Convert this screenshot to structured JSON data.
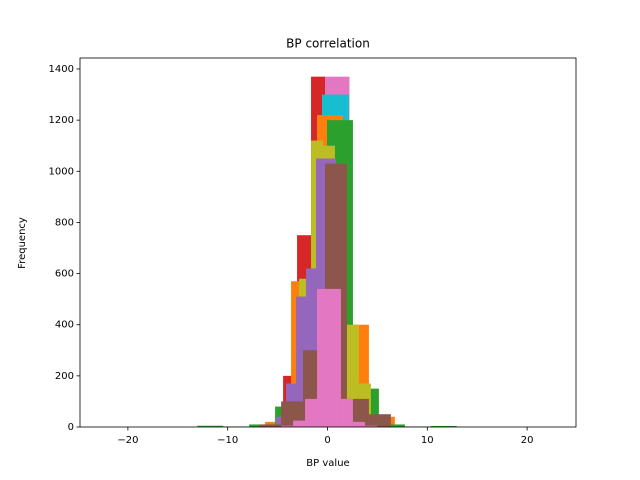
{
  "chart_data": {
    "type": "histogram",
    "title": "BP correlation",
    "x_label": "BP value",
    "y_label": "Frequency",
    "xlim": [
      -24.8,
      24.9
    ],
    "ylim": [
      0,
      1443
    ],
    "xticks": [
      {
        "value": -20,
        "label": "−20"
      },
      {
        "value": -10,
        "label": "−10"
      },
      0,
      10,
      20
    ],
    "yticks": [
      0,
      200,
      400,
      600,
      800,
      1000,
      1200,
      1400
    ],
    "grid": false,
    "series": [
      {
        "color": "#e377c2",
        "bins": [
          -2.9,
          -0.35,
          2.2,
          4.75
        ],
        "values": [
          200,
          1370,
          50
        ]
      },
      {
        "color": "#d62728",
        "bins": [
          -4.45,
          -3.05,
          -1.65,
          -0.25,
          1.15,
          2.55,
          3.95
        ],
        "values": [
          200,
          750,
          1370,
          300,
          60,
          10
        ]
      },
      {
        "color": "#17becf",
        "bins": [
          -6.0,
          -3.25,
          -0.55,
          2.15,
          4.85,
          7.55
        ],
        "values": [
          10,
          110,
          1300,
          60,
          5
        ]
      },
      {
        "color": "#ff7f0e",
        "bins": [
          -6.25,
          -3.65,
          -1.05,
          1.55,
          4.15,
          6.75
        ],
        "values": [
          20,
          570,
          1220,
          400,
          40
        ]
      },
      {
        "color": "#2ca02c",
        "bins": [
          -13.05,
          -10.45,
          -7.85,
          -5.25,
          -2.65,
          -0.05,
          2.55,
          5.15,
          7.75,
          10.35,
          12.95
        ],
        "values": [
          5,
          2,
          10,
          80,
          250,
          1200,
          150,
          10,
          2,
          4
        ]
      },
      {
        "color": "#bcbd22",
        "bins": [
          -4.05,
          -2.85,
          -1.65,
          -0.45,
          0.75,
          1.95,
          3.15,
          4.35
        ],
        "values": [
          100,
          580,
          1120,
          1100,
          900,
          400,
          170
        ]
      },
      {
        "color": "#9467bd",
        "bins": [
          -5.15,
          -4.15,
          -3.15,
          -2.15,
          -1.15,
          -0.15,
          0.85,
          1.85
        ],
        "values": [
          40,
          170,
          510,
          620,
          1050,
          1050,
          100
        ]
      },
      {
        "color": "#8c564b",
        "bins": [
          -6.85,
          -4.65,
          -2.45,
          -0.25,
          1.95,
          4.15,
          6.35
        ],
        "values": [
          10,
          100,
          300,
          1030,
          110,
          50
        ]
      },
      {
        "color": "#e377c2",
        "bins": [
          -4.65,
          -3.45,
          -2.25,
          -1.05,
          0.15,
          1.35,
          2.55,
          3.75,
          4.95
        ],
        "values": [
          5,
          25,
          110,
          540,
          540,
          110,
          20,
          5
        ]
      }
    ]
  }
}
